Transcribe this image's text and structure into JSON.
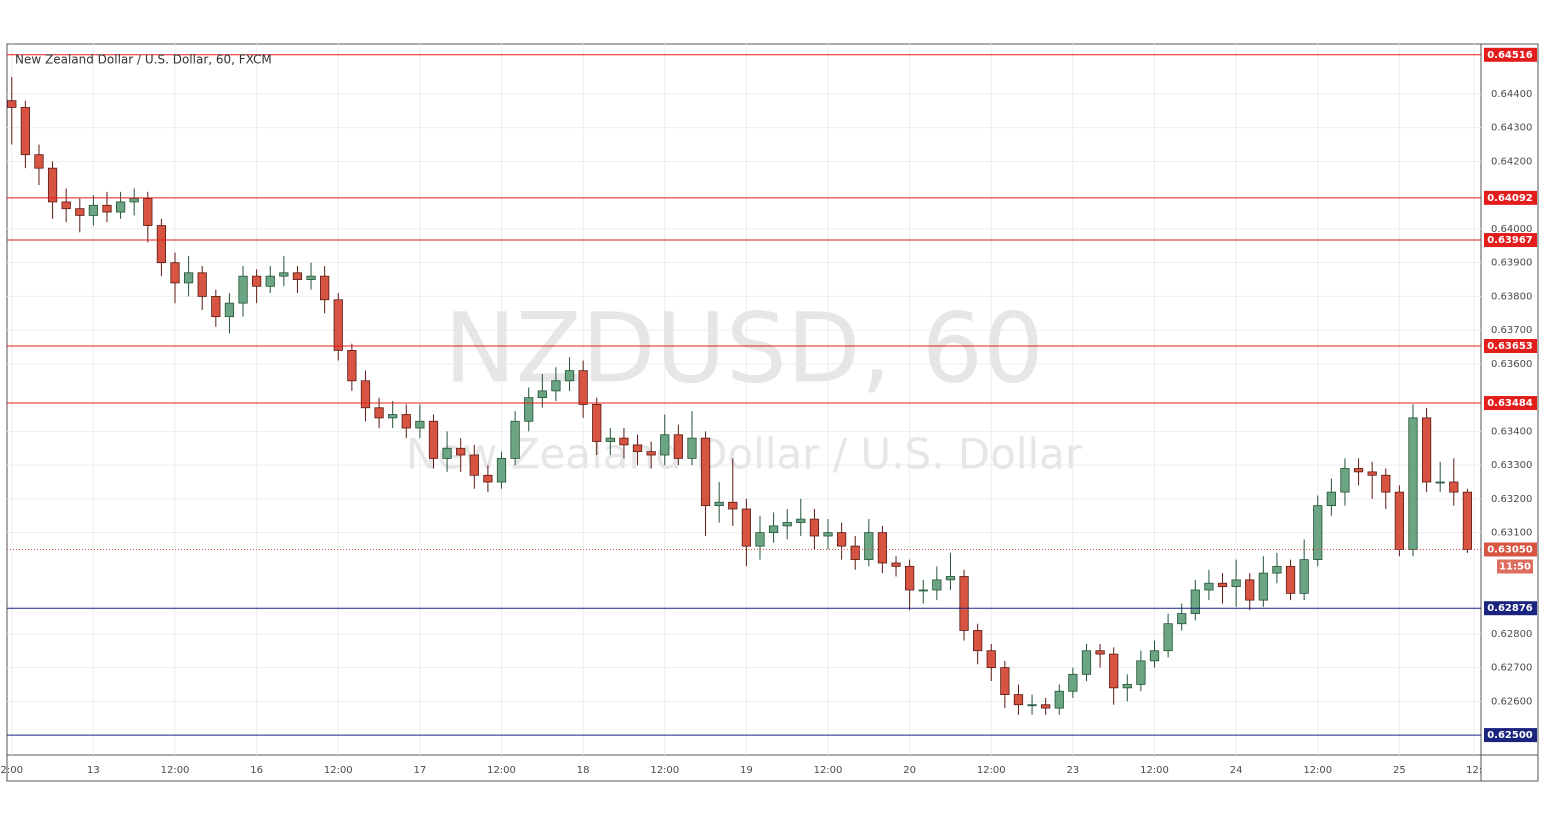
{
  "chart_data": {
    "type": "candlestick",
    "title": "New Zealand Dollar / U.S. Dollar, 60, FXCM",
    "watermark": "NZDUSD, 60",
    "watermark_subtitle": "New Zealand Dollar / U.S. Dollar",
    "up_color": "#6ba583",
    "up_border": "#225437",
    "down_color": "#d75442",
    "down_border": "#5b1a13",
    "grid": true,
    "xlim": [
      -0.7,
      216
    ],
    "ylim": [
      0.62441,
      0.64548
    ],
    "xticks": [
      {
        "value": 0,
        "label": "2:00"
      },
      {
        "value": 12,
        "label": "13"
      },
      {
        "value": 24,
        "label": "12:00"
      },
      {
        "value": 36,
        "label": "16"
      },
      {
        "value": 48,
        "label": "12:00"
      },
      {
        "value": 60,
        "label": "17"
      },
      {
        "value": 72,
        "label": "12:00"
      },
      {
        "value": 84,
        "label": "18"
      },
      {
        "value": 96,
        "label": "12:00"
      },
      {
        "value": 108,
        "label": "19"
      },
      {
        "value": 120,
        "label": "12:00"
      },
      {
        "value": 132,
        "label": "20"
      },
      {
        "value": 144,
        "label": "12:00"
      },
      {
        "value": 156,
        "label": "23"
      },
      {
        "value": 168,
        "label": "12:00"
      },
      {
        "value": 180,
        "label": "24"
      },
      {
        "value": 192,
        "label": "12:00"
      },
      {
        "value": 204,
        "label": "25"
      },
      {
        "value": 215,
        "label": "12:"
      }
    ],
    "yticks": [
      {
        "value": 0.644,
        "label": "0.64400"
      },
      {
        "value": 0.643,
        "label": "0.64300"
      },
      {
        "value": 0.642,
        "label": "0.64200"
      },
      {
        "value": 0.64,
        "label": "0.64000"
      },
      {
        "value": 0.639,
        "label": "0.63900"
      },
      {
        "value": 0.638,
        "label": "0.63800"
      },
      {
        "value": 0.637,
        "label": "0.63700"
      },
      {
        "value": 0.636,
        "label": "0.63600"
      },
      {
        "value": 0.634,
        "label": "0.63400"
      },
      {
        "value": 0.633,
        "label": "0.63300"
      },
      {
        "value": 0.632,
        "label": "0.63200"
      },
      {
        "value": 0.631,
        "label": "0.63100"
      },
      {
        "value": 0.628,
        "label": "0.62800"
      },
      {
        "value": 0.627,
        "label": "0.62700"
      },
      {
        "value": 0.626,
        "label": "0.62600"
      }
    ],
    "levels": [
      {
        "value": 0.64516,
        "label": "0.64516",
        "color": "#e31c1c"
      },
      {
        "value": 0.64092,
        "label": "0.64092",
        "color": "#e31c1c"
      },
      {
        "value": 0.63967,
        "label": "0.63967",
        "color": "#e31c1c"
      },
      {
        "value": 0.63653,
        "label": "0.63653",
        "color": "#e31c1c"
      },
      {
        "value": 0.63484,
        "label": "0.63484",
        "color": "#e31c1c"
      },
      {
        "value": 0.62876,
        "label": "0.62876",
        "color": "#1a237e"
      },
      {
        "value": 0.625,
        "label": "0.62500",
        "color": "#1a237e"
      }
    ],
    "last_price": {
      "value": 0.6305,
      "label": "0.63050",
      "countdown": "11:50",
      "color": "#d75442"
    },
    "x": [
      0,
      2,
      4,
      6,
      8,
      10,
      12,
      14,
      16,
      18,
      20,
      22,
      24,
      26,
      28,
      30,
      32,
      34,
      36,
      38,
      40,
      42,
      44,
      46,
      48,
      50,
      52,
      54,
      56,
      58,
      60,
      62,
      64,
      66,
      68,
      70,
      72,
      74,
      76,
      78,
      80,
      82,
      84,
      86,
      88,
      90,
      92,
      94,
      96,
      98,
      100,
      102,
      104,
      106,
      108,
      110,
      112,
      114,
      116,
      118,
      120,
      122,
      124,
      126,
      128,
      130,
      132,
      134,
      136,
      138,
      140,
      142,
      144,
      146,
      148,
      150,
      152,
      154,
      156,
      158,
      160,
      162,
      164,
      166,
      168,
      170,
      172,
      174,
      176,
      178,
      180,
      182,
      184,
      186,
      188,
      190,
      192,
      194,
      196,
      198,
      200,
      202,
      204,
      206,
      208,
      210,
      212,
      214
    ],
    "open": [
      0.6438,
      0.6436,
      0.6422,
      0.6418,
      0.6408,
      0.6406,
      0.6404,
      0.6407,
      0.6405,
      0.6408,
      0.6409,
      0.6401,
      0.639,
      0.6384,
      0.6387,
      0.638,
      0.6374,
      0.6378,
      0.6386,
      0.6383,
      0.6386,
      0.6387,
      0.6385,
      0.6386,
      0.6379,
      0.6364,
      0.6355,
      0.6347,
      0.6344,
      0.6345,
      0.6341,
      0.6343,
      0.6332,
      0.6335,
      0.6333,
      0.6327,
      0.6325,
      0.6332,
      0.6343,
      0.635,
      0.6352,
      0.6355,
      0.6358,
      0.6348,
      0.6337,
      0.6338,
      0.6336,
      0.6334,
      0.6333,
      0.6339,
      0.6332,
      0.6338,
      0.6318,
      0.6319,
      0.6317,
      0.6306,
      0.631,
      0.6312,
      0.6313,
      0.6314,
      0.6309,
      0.631,
      0.6306,
      0.6302,
      0.631,
      0.6301,
      0.63,
      0.6293,
      0.6293,
      0.6296,
      0.6297,
      0.6281,
      0.6275,
      0.627,
      0.6262,
      0.6259,
      0.6259,
      0.6258,
      0.6263,
      0.6268,
      0.6275,
      0.6274,
      0.6264,
      0.6265,
      0.6272,
      0.6275,
      0.6283,
      0.6286,
      0.6293,
      0.6295,
      0.6294,
      0.6296,
      0.629,
      0.6298,
      0.63,
      0.6292,
      0.6302,
      0.6318,
      0.6322,
      0.6329,
      0.6328,
      0.6327,
      0.6322,
      0.6305,
      0.6344,
      0.6325,
      0.6325,
      0.6322
    ],
    "high": [
      0.6445,
      0.6438,
      0.6425,
      0.642,
      0.6412,
      0.6409,
      0.641,
      0.6411,
      0.6411,
      0.6412,
      0.6411,
      0.6403,
      0.6393,
      0.6392,
      0.6389,
      0.6382,
      0.6381,
      0.6389,
      0.6388,
      0.6389,
      0.6392,
      0.6389,
      0.639,
      0.6389,
      0.6381,
      0.6366,
      0.6358,
      0.635,
      0.6349,
      0.6348,
      0.6348,
      0.6345,
      0.634,
      0.6338,
      0.6336,
      0.633,
      0.6334,
      0.6346,
      0.6353,
      0.6357,
      0.6359,
      0.6362,
      0.6361,
      0.635,
      0.6341,
      0.6341,
      0.6339,
      0.6337,
      0.6345,
      0.6342,
      0.6346,
      0.634,
      0.6325,
      0.6332,
      0.632,
      0.6315,
      0.6316,
      0.6317,
      0.632,
      0.6317,
      0.6314,
      0.6313,
      0.6309,
      0.6314,
      0.6312,
      0.6303,
      0.6302,
      0.6296,
      0.63,
      0.6304,
      0.6299,
      0.6283,
      0.6277,
      0.6272,
      0.6265,
      0.6262,
      0.6261,
      0.6265,
      0.627,
      0.6277,
      0.6277,
      0.6276,
      0.6268,
      0.6275,
      0.6278,
      0.6286,
      0.6289,
      0.6296,
      0.6299,
      0.6298,
      0.6302,
      0.6298,
      0.6303,
      0.6304,
      0.6302,
      0.6308,
      0.6321,
      0.6326,
      0.6332,
      0.6332,
      0.6331,
      0.6329,
      0.6324,
      0.6348,
      0.6347,
      0.6331,
      0.6332,
      0.6323
    ],
    "low": [
      0.6425,
      0.6418,
      0.6413,
      0.6403,
      0.6402,
      0.6399,
      0.6401,
      0.6402,
      0.6403,
      0.6404,
      0.6396,
      0.6386,
      0.6378,
      0.638,
      0.6376,
      0.6371,
      0.6369,
      0.6374,
      0.6378,
      0.6381,
      0.6383,
      0.6381,
      0.6382,
      0.6375,
      0.6361,
      0.6352,
      0.6343,
      0.6341,
      0.6341,
      0.6338,
      0.6338,
      0.6329,
      0.6328,
      0.6328,
      0.6323,
      0.6322,
      0.6323,
      0.633,
      0.634,
      0.6347,
      0.6349,
      0.6352,
      0.6344,
      0.6333,
      0.6333,
      0.6332,
      0.633,
      0.6329,
      0.633,
      0.633,
      0.633,
      0.6309,
      0.6313,
      0.6312,
      0.63,
      0.6302,
      0.6307,
      0.6308,
      0.6309,
      0.6305,
      0.6305,
      0.6302,
      0.6299,
      0.63,
      0.6298,
      0.6297,
      0.6287,
      0.6289,
      0.629,
      0.6293,
      0.6278,
      0.6271,
      0.6266,
      0.6258,
      0.6256,
      0.6256,
      0.6256,
      0.6256,
      0.6261,
      0.6266,
      0.627,
      0.6259,
      0.626,
      0.6263,
      0.627,
      0.6273,
      0.6281,
      0.6284,
      0.629,
      0.6289,
      0.6288,
      0.6287,
      0.6288,
      0.6295,
      0.629,
      0.629,
      0.63,
      0.6315,
      0.6318,
      0.6324,
      0.632,
      0.6317,
      0.6303,
      0.6303,
      0.6322,
      0.6322,
      0.6318,
      0.6304
    ],
    "close": [
      0.6436,
      0.6422,
      0.6418,
      0.6408,
      0.6406,
      0.6404,
      0.6407,
      0.6405,
      0.6408,
      0.6409,
      0.6401,
      0.639,
      0.6384,
      0.6387,
      0.638,
      0.6374,
      0.6378,
      0.6386,
      0.6383,
      0.6386,
      0.6387,
      0.6385,
      0.6386,
      0.6379,
      0.6364,
      0.6355,
      0.6347,
      0.6344,
      0.6345,
      0.6341,
      0.6343,
      0.6332,
      0.6335,
      0.6333,
      0.6327,
      0.6325,
      0.6332,
      0.6343,
      0.635,
      0.6352,
      0.6355,
      0.6358,
      0.6348,
      0.6337,
      0.6338,
      0.6336,
      0.6334,
      0.6333,
      0.6339,
      0.6332,
      0.6338,
      0.6318,
      0.6319,
      0.6317,
      0.6306,
      0.631,
      0.6312,
      0.6313,
      0.6314,
      0.6309,
      0.631,
      0.6306,
      0.6302,
      0.631,
      0.6301,
      0.63,
      0.6293,
      0.6293,
      0.6296,
      0.6297,
      0.6281,
      0.6275,
      0.627,
      0.6262,
      0.6259,
      0.6259,
      0.6258,
      0.6263,
      0.6268,
      0.6275,
      0.6274,
      0.6264,
      0.6265,
      0.6272,
      0.6275,
      0.6283,
      0.6286,
      0.6293,
      0.6295,
      0.6294,
      0.6296,
      0.629,
      0.6298,
      0.63,
      0.6292,
      0.6302,
      0.6318,
      0.6322,
      0.6329,
      0.6328,
      0.6327,
      0.6322,
      0.6305,
      0.6344,
      0.6325,
      0.6325,
      0.6322,
      0.6305
    ]
  }
}
